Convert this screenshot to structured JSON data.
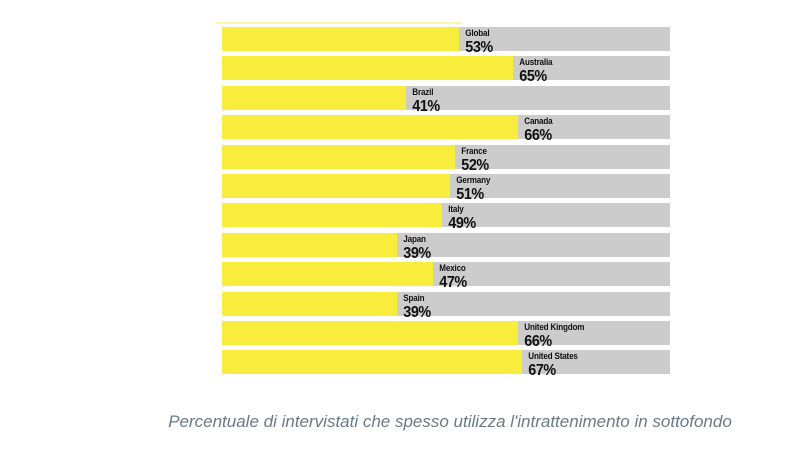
{
  "chart_data": {
    "type": "bar",
    "orientation": "horizontal",
    "categories": [
      "Global",
      "Australia",
      "Brazil",
      "Canada",
      "France",
      "Germany",
      "Italy",
      "Japan",
      "Mexico",
      "Spain",
      "United Kingdom",
      "United States"
    ],
    "values": [
      53,
      65,
      41,
      66,
      52,
      51,
      49,
      39,
      47,
      39,
      66,
      67
    ],
    "unit": "%",
    "xlim": [
      0,
      100
    ],
    "grid": false,
    "legend": "none",
    "bar_color": "#f8ec3c",
    "track_color": "#cccccc",
    "label_color": "#111111",
    "caption": "Percentuale di intervistati che spesso utilizza l'intrattenimento in sottofondo",
    "caption_color": "#6a7988"
  }
}
